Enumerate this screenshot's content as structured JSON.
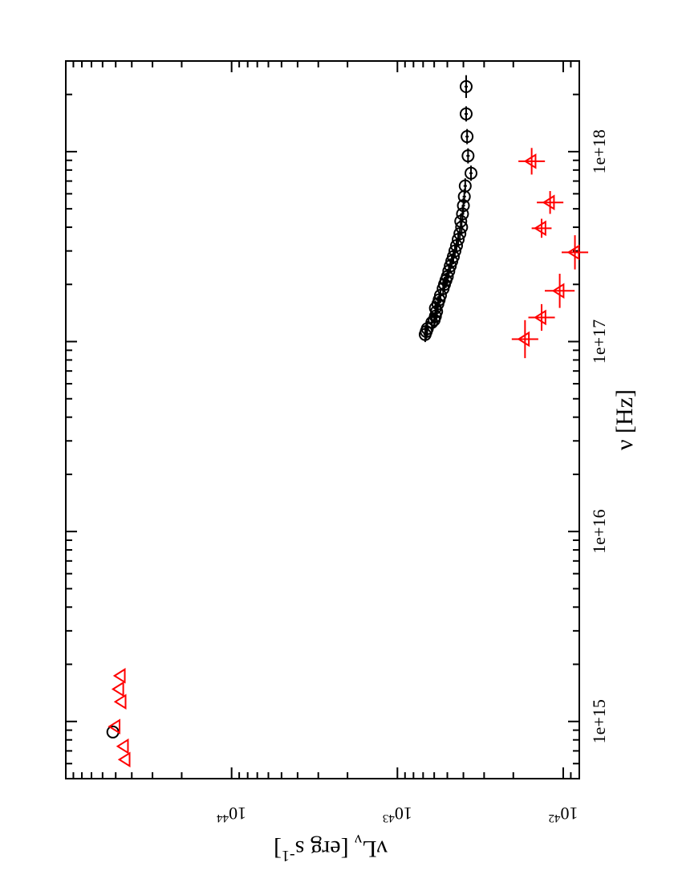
{
  "chart_data": {
    "type": "scatter",
    "orientation": "rotated-90-clockwise",
    "title": "",
    "xlabel": {
      "main": "ν [Hz]"
    },
    "ylabel": {
      "main": "νL",
      "sub": "ν",
      "rest": " [erg s",
      "sup": "-1",
      "end": "]"
    },
    "x_axis": {
      "scale": "log",
      "range": [
        500000000000000.0,
        3e+18
      ],
      "major_ticks": [
        {
          "value": 1000000000000000.0,
          "label": "1e+15"
        },
        {
          "value": 1e+16,
          "label": "1e+16"
        },
        {
          "value": 1e+17,
          "label": "1e+17"
        },
        {
          "value": 1e+18,
          "label": "1e+18"
        }
      ]
    },
    "y_axis": {
      "scale": "log",
      "range": [
        8e+41,
        1e+45
      ],
      "major_ticks": [
        {
          "value": 1e+42,
          "base": "10",
          "exp": "42"
        },
        {
          "value": 1e+43,
          "base": "10",
          "exp": "43"
        },
        {
          "value": 1e+44,
          "base": "10",
          "exp": "44"
        }
      ]
    },
    "grid": false,
    "legend": "none",
    "series": [
      {
        "marker": "circle",
        "color": "#000000",
        "points": [
          {
            "x": 880000000000000.0,
            "y": 5.2e+44
          },
          {
            "x": 1.09e+17,
            "y": 6.8e+42,
            "xerr": 0.04,
            "yerr": 0.01
          },
          {
            "x": 1.13e+17,
            "y": 6.7e+42,
            "xerr": 0.04,
            "yerr": 0.01
          },
          {
            "x": 1.17e+17,
            "y": 6.6e+42,
            "xerr": 0.04,
            "yerr": 0.01
          },
          {
            "x": 1.26e+17,
            "y": 6.2e+42,
            "xerr": 0.04,
            "yerr": 0.01
          },
          {
            "x": 1.3e+17,
            "y": 6e+42,
            "xerr": 0.04,
            "yerr": 0.01
          },
          {
            "x": 1.36e+17,
            "y": 5.9e+42,
            "xerr": 0.04,
            "yerr": 0.01
          },
          {
            "x": 1.44e+17,
            "y": 5.8e+42,
            "xerr": 0.04,
            "yerr": 0.01
          },
          {
            "x": 1.5e+17,
            "y": 5.9e+42,
            "xerr": 0.04,
            "yerr": 0.01
          },
          {
            "x": 1.58e+17,
            "y": 5.7e+42,
            "xerr": 0.04,
            "yerr": 0.01
          },
          {
            "x": 1.66e+17,
            "y": 5.6e+42,
            "xerr": 0.04,
            "yerr": 0.01
          },
          {
            "x": 1.75e+17,
            "y": 5.5e+42,
            "xerr": 0.04,
            "yerr": 0.01
          },
          {
            "x": 1.9e+17,
            "y": 5.3e+42,
            "xerr": 0.04,
            "yerr": 0.01
          },
          {
            "x": 2e+17,
            "y": 5.2e+42,
            "xerr": 0.04,
            "yerr": 0.01
          },
          {
            "x": 2.1e+17,
            "y": 5.1e+42,
            "xerr": 0.04,
            "yerr": 0.01
          },
          {
            "x": 2.2e+17,
            "y": 5e+42,
            "xerr": 0.04,
            "yerr": 0.01
          },
          {
            "x": 2.35e+17,
            "y": 4.9e+42,
            "xerr": 0.04,
            "yerr": 0.01
          },
          {
            "x": 2.5e+17,
            "y": 4.8e+42,
            "xerr": 0.04,
            "yerr": 0.01
          },
          {
            "x": 2.65e+17,
            "y": 4.7e+42,
            "xerr": 0.04,
            "yerr": 0.01
          },
          {
            "x": 2.8e+17,
            "y": 4.6e+42,
            "xerr": 0.04,
            "yerr": 0.01
          },
          {
            "x": 3e+17,
            "y": 4.5e+42,
            "xerr": 0.04,
            "yerr": 0.01
          },
          {
            "x": 3.2e+17,
            "y": 4.4e+42,
            "xerr": 0.04,
            "yerr": 0.01
          },
          {
            "x": 3.45e+17,
            "y": 4.3e+42,
            "xerr": 0.04,
            "yerr": 0.01
          },
          {
            "x": 3.7e+17,
            "y": 4.2e+42,
            "xerr": 0.04,
            "yerr": 0.01
          },
          {
            "x": 4e+17,
            "y": 4.1e+42,
            "xerr": 0.04,
            "yerr": 0.01
          },
          {
            "x": 4.3e+17,
            "y": 4.15e+42,
            "xerr": 0.04,
            "yerr": 0.01
          },
          {
            "x": 4.7e+17,
            "y": 4.05e+42,
            "xerr": 0.04,
            "yerr": 0.01
          },
          {
            "x": 5.2e+17,
            "y": 4e+42,
            "xerr": 0.04,
            "yerr": 0.01
          },
          {
            "x": 5.8e+17,
            "y": 3.95e+42,
            "xerr": 0.04,
            "yerr": 0.01
          },
          {
            "x": 6.6e+17,
            "y": 3.9e+42,
            "xerr": 0.04,
            "yerr": 0.01
          },
          {
            "x": 7.7e+17,
            "y": 3.6e+42,
            "xerr": 0.04,
            "yerr": 0.01
          },
          {
            "x": 9.5e+17,
            "y": 3.75e+42,
            "xerr": 0.04,
            "yerr": 0.01
          },
          {
            "x": 1.2e+18,
            "y": 3.8e+42,
            "xerr": 0.04,
            "yerr": 0.01
          },
          {
            "x": 1.58e+18,
            "y": 3.85e+42,
            "xerr": 0.04,
            "yerr": 0.01
          },
          {
            "x": 2.2e+18,
            "y": 3.85e+42,
            "xerr": 0.06,
            "yerr": 0.01
          }
        ]
      },
      {
        "marker": "triangle",
        "color": "#ff0000",
        "points": [
          {
            "x": 630000000000000.0,
            "y": 4.35e+44
          },
          {
            "x": 740000000000000.0,
            "y": 4.45e+44
          },
          {
            "x": 940000000000000.0,
            "y": 5e+44
          },
          {
            "x": 1270000000000000.0,
            "y": 4.6e+44
          },
          {
            "x": 1480000000000000.0,
            "y": 4.75e+44
          },
          {
            "x": 1740000000000000.0,
            "y": 4.65e+44
          },
          {
            "x": 1.03e+17,
            "y": 1.7e+42,
            "xerr": 0.1,
            "yerr": 0.08
          },
          {
            "x": 1.34e+17,
            "y": 1.35e+42,
            "xerr": 0.07,
            "yerr": 0.08
          },
          {
            "x": 1.85e+17,
            "y": 1.05e+42,
            "xerr": 0.09,
            "yerr": 0.09
          },
          {
            "x": 2.95e+17,
            "y": 8.5e+41,
            "xerr": 0.09,
            "yerr": 0.08
          },
          {
            "x": 3.95e+17,
            "y": 1.35e+42,
            "xerr": 0.05,
            "yerr": 0.06
          },
          {
            "x": 5.4e+17,
            "y": 1.2e+42,
            "xerr": 0.06,
            "yerr": 0.08
          },
          {
            "x": 8.9e+17,
            "y": 1.55e+42,
            "xerr": 0.07,
            "yerr": 0.08
          }
        ]
      }
    ]
  }
}
